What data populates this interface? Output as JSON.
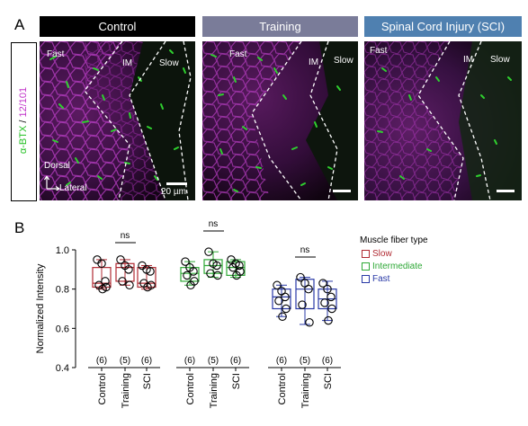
{
  "panel_a": {
    "letter": "A",
    "y_label": {
      "part1": "α-BTX",
      "separator": " / ",
      "part2": "12/101"
    },
    "colors": {
      "stain1": "#1fbf1f",
      "stain2": "#c133c9",
      "header_control": "#000000",
      "header_training": "#7a7c99",
      "header_sci": "#4f80b0"
    },
    "headers": [
      "Control",
      "Training",
      "Spinal Cord Injury (SCI)"
    ],
    "image1": {
      "fast": "Fast",
      "im": "IM",
      "slow": "Slow",
      "dorsal": "Dorsal",
      "lateral": "Lateral",
      "scale": "20 µm"
    },
    "image2": {
      "fast": "Fast",
      "im": "IM",
      "slow": "Slow"
    },
    "image3": {
      "fast": "Fast",
      "im": "IM",
      "slow": "Slow"
    }
  },
  "panel_b": {
    "letter": "B",
    "ns_label": "ns",
    "legend": {
      "title": "Muscle fiber type",
      "items": [
        {
          "name": "Slow",
          "color": "#b02a32"
        },
        {
          "name": "Intermediate",
          "color": "#2ea836"
        },
        {
          "name": "Fast",
          "color": "#2838a6"
        }
      ]
    }
  },
  "chart_data": {
    "type": "box",
    "ylabel": "Normalized Intensity",
    "ylim": [
      0.4,
      1.0
    ],
    "yticks": [
      0.4,
      0.6,
      0.8,
      1.0
    ],
    "ytick_labels": [
      "0.4",
      "0.6",
      "0.8",
      "1.0"
    ],
    "categories": [
      "Control",
      "Training",
      "SCI"
    ],
    "series": [
      {
        "name": "Slow",
        "color": "#b02a32",
        "groups": [
          {
            "n_label": "(6)",
            "whisker": [
              0.8,
              0.95
            ],
            "box": [
              0.81,
              0.91
            ],
            "median": 0.83,
            "points": [
              0.95,
              0.93,
              0.84,
              0.82,
              0.81,
              0.8
            ]
          },
          {
            "n_label": "(5)",
            "whisker": [
              0.82,
              0.95
            ],
            "box": [
              0.84,
              0.93
            ],
            "median": 0.91,
            "points": [
              0.95,
              0.92,
              0.9,
              0.84,
              0.82
            ]
          },
          {
            "n_label": "(6)",
            "whisker": [
              0.8,
              0.92
            ],
            "box": [
              0.81,
              0.91
            ],
            "median": 0.83,
            "points": [
              0.92,
              0.9,
              0.89,
              0.83,
              0.82,
              0.81
            ]
          }
        ]
      },
      {
        "name": "Intermediate",
        "color": "#2ea836",
        "groups": [
          {
            "n_label": "(6)",
            "whisker": [
              0.82,
              0.94
            ],
            "box": [
              0.84,
              0.91
            ],
            "median": 0.88,
            "points": [
              0.94,
              0.91,
              0.89,
              0.87,
              0.84,
              0.82
            ]
          },
          {
            "n_label": "(5)",
            "whisker": [
              0.86,
              0.99
            ],
            "box": [
              0.88,
              0.95
            ],
            "median": 0.92,
            "points": [
              0.99,
              0.93,
              0.92,
              0.88,
              0.87
            ]
          },
          {
            "n_label": "(6)",
            "whisker": [
              0.86,
              0.95
            ],
            "box": [
              0.87,
              0.94
            ],
            "median": 0.91,
            "points": [
              0.95,
              0.93,
              0.92,
              0.91,
              0.89,
              0.87
            ]
          }
        ]
      },
      {
        "name": "Fast",
        "color": "#2838a6",
        "groups": [
          {
            "n_label": "(6)",
            "whisker": [
              0.66,
              0.82
            ],
            "box": [
              0.7,
              0.8
            ],
            "median": 0.76,
            "points": [
              0.82,
              0.79,
              0.76,
              0.74,
              0.7,
              0.66
            ]
          },
          {
            "n_label": "(5)",
            "whisker": [
              0.62,
              0.86
            ],
            "box": [
              0.7,
              0.85
            ],
            "median": 0.8,
            "points": [
              0.86,
              0.83,
              0.8,
              0.72,
              0.63
            ]
          },
          {
            "n_label": "(6)",
            "whisker": [
              0.64,
              0.84
            ],
            "box": [
              0.7,
              0.8
            ],
            "median": 0.75,
            "points": [
              0.83,
              0.8,
              0.76,
              0.73,
              0.7,
              0.64
            ]
          }
        ]
      }
    ]
  }
}
